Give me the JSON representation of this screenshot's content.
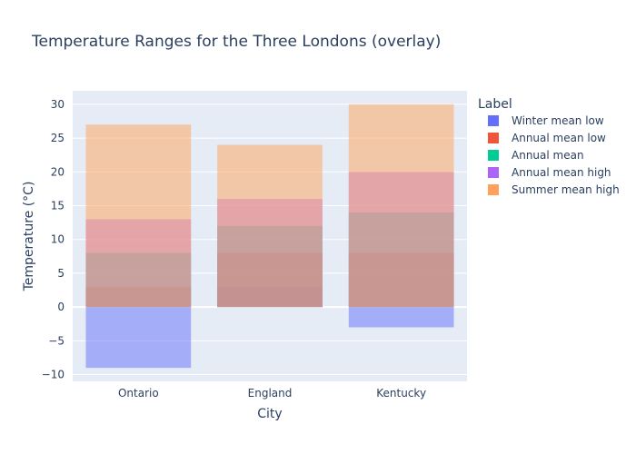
{
  "chart_data": {
    "type": "bar",
    "barmode": "overlay",
    "title": "Temperature Ranges for the Three Londons (overlay)",
    "xlabel": "City",
    "ylabel": "Temperature (°C)",
    "categories": [
      "Ontario",
      "England",
      "Kentucky"
    ],
    "ylim": [
      -11,
      32
    ],
    "yticks": [
      -10,
      -5,
      0,
      5,
      10,
      15,
      20,
      25,
      30
    ],
    "ytick_labels": [
      "−10",
      "−5",
      "0",
      "5",
      "10",
      "15",
      "20",
      "25",
      "30"
    ],
    "grid": true,
    "legend": {
      "title": "Label",
      "placement": "right"
    },
    "series": [
      {
        "name": "Winter mean low",
        "color": "#636efa",
        "values": [
          -9,
          3,
          -3
        ]
      },
      {
        "name": "Annual mean low",
        "color": "#ef553b",
        "values": [
          3,
          8,
          8
        ]
      },
      {
        "name": "Annual mean",
        "color": "#00cc96",
        "values": [
          8,
          12,
          14
        ]
      },
      {
        "name": "Annual mean high",
        "color": "#ab63fa",
        "values": [
          13,
          16,
          20
        ]
      },
      {
        "name": "Summer mean high",
        "color": "#ffa15a",
        "values": [
          27,
          24,
          30
        ]
      }
    ]
  }
}
